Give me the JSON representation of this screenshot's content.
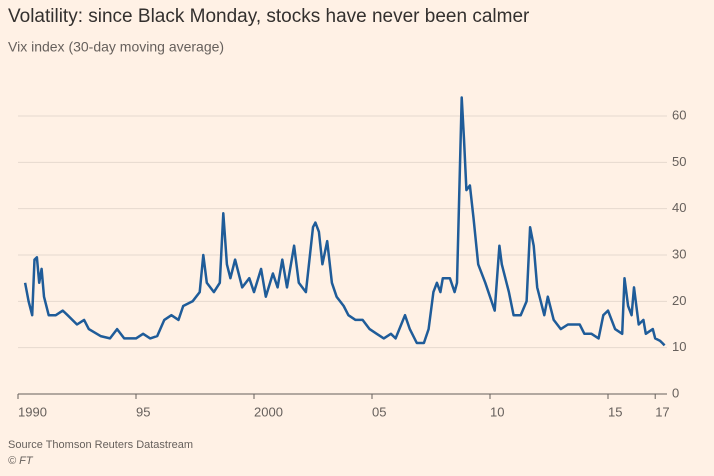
{
  "chart_data": {
    "type": "line",
    "title": "Volatility: since Black Monday, stocks have never been calmer",
    "subtitle": "Vix index (30-day moving average)",
    "source": "Source Thomson Reuters Datastream",
    "credit": "© FT",
    "series": [
      {
        "name": "Vix index",
        "color": "#1f5c99",
        "x": [
          1990.3,
          1990.45,
          1990.6,
          1990.7,
          1990.8,
          1990.9,
          1991.0,
          1991.1,
          1991.3,
          1991.6,
          1991.9,
          1992.1,
          1992.5,
          1992.8,
          1993.0,
          1993.5,
          1993.9,
          1994.2,
          1994.5,
          1994.8,
          1995.0,
          1995.3,
          1995.6,
          1995.9,
          1996.2,
          1996.5,
          1996.8,
          1997.0,
          1997.4,
          1997.7,
          1997.85,
          1998.0,
          1998.3,
          1998.55,
          1998.7,
          1998.85,
          1999.0,
          1999.2,
          1999.5,
          1999.8,
          2000.0,
          2000.3,
          2000.5,
          2000.8,
          2001.0,
          2001.2,
          2001.4,
          2001.7,
          2001.9,
          2002.2,
          2002.5,
          2002.6,
          2002.75,
          2002.9,
          2003.1,
          2003.3,
          2003.5,
          2003.8,
          2004.0,
          2004.3,
          2004.6,
          2004.9,
          2005.2,
          2005.5,
          2005.8,
          2006.0,
          2006.4,
          2006.6,
          2006.9,
          2007.2,
          2007.4,
          2007.6,
          2007.75,
          2007.9,
          2008.0,
          2008.3,
          2008.5,
          2008.6,
          2008.8,
          2008.9,
          2009.0,
          2009.15,
          2009.3,
          2009.5,
          2009.8,
          2010.0,
          2010.2,
          2010.4,
          2010.5,
          2010.8,
          2011.0,
          2011.3,
          2011.55,
          2011.7,
          2011.85,
          2012.0,
          2012.3,
          2012.45,
          2012.7,
          2013.0,
          2013.3,
          2013.5,
          2013.8,
          2014.0,
          2014.3,
          2014.6,
          2014.8,
          2015.0,
          2015.3,
          2015.6,
          2015.7,
          2015.85,
          2016.0,
          2016.1,
          2016.3,
          2016.5,
          2016.6,
          2016.9,
          2017.0,
          2017.2,
          2017.3,
          2017.4
        ],
        "values": [
          24,
          20,
          17,
          29,
          29.5,
          24,
          27,
          21,
          17,
          17,
          18,
          17,
          15,
          16,
          14,
          12.5,
          12,
          14,
          12,
          12,
          12,
          13,
          12,
          12.5,
          16,
          17,
          16,
          19,
          20,
          22,
          30,
          24,
          22,
          24,
          39,
          28,
          25,
          29,
          23,
          25,
          22,
          27,
          21,
          26,
          23,
          29,
          23,
          32,
          24,
          22,
          36,
          37,
          35,
          28,
          33,
          24,
          21,
          19,
          17,
          16,
          16,
          14,
          13,
          12,
          13,
          12,
          17,
          14,
          11,
          11,
          14,
          22,
          24,
          22,
          25,
          25,
          22,
          24,
          64,
          55,
          44,
          45,
          38,
          28,
          24,
          21,
          18,
          32,
          28,
          22,
          17,
          17,
          20,
          36,
          32,
          23,
          17,
          21,
          16,
          14,
          15,
          15,
          15,
          13,
          13,
          12,
          17,
          18,
          14,
          13,
          25,
          19,
          17,
          23,
          15,
          16,
          13,
          14,
          12,
          11.5,
          11,
          10.5
        ]
      }
    ],
    "xlim": [
      1990,
      2017.5
    ],
    "xticks": [
      1990,
      {
        "value": 1995,
        "label": "95"
      },
      2000,
      {
        "value": 2005,
        "label": "05"
      },
      {
        "value": 2010,
        "label": "10"
      },
      {
        "value": 2015,
        "label": "15"
      },
      {
        "value": 2017,
        "label": "17"
      }
    ],
    "ylim": [
      0,
      60
    ],
    "yticks": [
      0,
      10,
      20,
      30,
      40,
      50,
      60
    ],
    "grid": true
  }
}
